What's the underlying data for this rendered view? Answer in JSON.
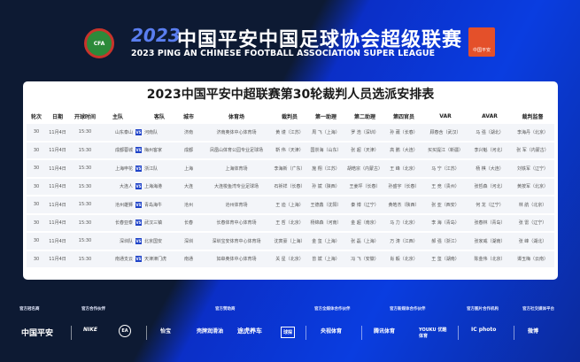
{
  "header": {
    "year": "2023",
    "title_cn": "中国平安中国足球协会超级联赛",
    "title_en": "2023 PING AN CHINESE FOOTBALL ASSOCIATION SUPER LEAGUE",
    "cfa_logo": "CFA",
    "badge_text": "中国平安"
  },
  "card": {
    "title": "2023中国平安中超联赛第30轮裁判人员选派安排表"
  },
  "table": {
    "columns": [
      "轮次",
      "日期",
      "开球时间",
      "主队",
      "",
      "客队",
      "城市",
      "体育场",
      "裁判员",
      "第一助理",
      "第二助理",
      "第四官员",
      "VAR",
      "AVAR",
      "裁判监督"
    ],
    "vs_label": "VS",
    "rows": [
      [
        "30",
        "11月4日",
        "15:30",
        "山东泰山",
        "河南队",
        "济南",
        "济南奥体中心体育场",
        "黄 谨（江苏）",
        "周 飞（上海）",
        "罗 浩（深圳）",
        "孙 葳（长春）",
        "顾春含（武汉）",
        "马 强（湖北）",
        "李海丹（北京）"
      ],
      [
        "30",
        "11月4日",
        "15:30",
        "成都蓉城",
        "梅州客家",
        "成都",
        "凤凰山体育公园专业足球场",
        "靳 伟（天津）",
        "国崇海（山东）",
        "张 超（天津）",
        "高 鹏（大连）",
        "买买提江（新疆）",
        "李兴魁（河北）",
        "张 军（内蒙古）"
      ],
      [
        "30",
        "11月4日",
        "15:30",
        "上海申花",
        "浙江队",
        "上海",
        "上海体育场",
        "李海新（广东）",
        "施 翔（江苏）",
        "胡皓宗（内蒙古）",
        "王 峰（北京）",
        "马 宁（江苏）",
        "杨 棋（大连）",
        "刘铁军（辽宁）"
      ],
      [
        "30",
        "11月4日",
        "15:30",
        "大连人",
        "上海海港",
        "大连",
        "大连梭鱼湾专业足球场",
        "石祯祥（长春）",
        "孙 斌（陕西）",
        "王姜坪（长春）",
        "孙盛宇（长春）",
        "王 竞（贵州）",
        "张哲森（河北）",
        "黄按军（北京）"
      ],
      [
        "30",
        "11月4日",
        "15:30",
        "沧州雄狮",
        "青岛海牛",
        "沧州",
        "沧州体育场",
        "王 迪（上海）",
        "王德鑫（沈阳）",
        "秦 博（辽宁）",
        "黄皓杰（陕西）",
        "张 亚（西安）",
        "何 龙（辽宁）",
        "林 航（北京）"
      ],
      [
        "30",
        "11月4日",
        "15:30",
        "长春亚泰",
        "武汉三镇",
        "长春",
        "长春体育中心体育场",
        "王 哲（北京）",
        "杨锦森（河南）",
        "金 超（南京）",
        "马 力（北京）",
        "李 海（青岛）",
        "张春林（青岛）",
        "张 雷（辽宁）"
      ],
      [
        "30",
        "11月4日",
        "15:30",
        "深圳队",
        "北京国安",
        "深圳",
        "深圳宝安体育中心体育场",
        "沈寅豪（上海）",
        "金 玺（上海）",
        "张 磊（上海）",
        "万 涛（江西）",
        "郝 强（浙江）",
        "张家威（湖南）",
        "张 峰（湖北）"
      ],
      [
        "30",
        "11月4日",
        "15:30",
        "南通支云",
        "天津津门虎",
        "南通",
        "如皋奥体中心体育场",
        "关 星（北京）",
        "曾 斌（上海）",
        "冯 飞（安徽）",
        "肖 毅（北京）",
        "王 玺（湖南）",
        "陈金伟（北京）",
        "谭玉梅（云南）"
      ]
    ]
  },
  "footer": {
    "categories": [
      "官方冠名商",
      "官方合作伙伴",
      "官方赞助商",
      "官方全媒体合作伙伴",
      "官方新媒体合作伙伴",
      "官方图片合作机构",
      "官方社交媒体平台"
    ],
    "logos": [
      "中国平安",
      "NIKE",
      "EA",
      "怡宝",
      "壳牌润滑油",
      "途虎养车",
      "球探",
      "央视体育",
      "腾讯体育",
      "YOUKU 优酷体育",
      "IC photo",
      "微博"
    ]
  },
  "colors": {
    "navy": "#0d1a33",
    "blue": "#0a3de0",
    "vs": "#1f43c8",
    "row": "#f3f5f9"
  }
}
